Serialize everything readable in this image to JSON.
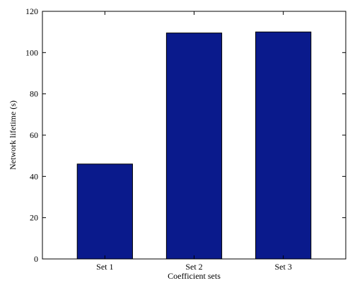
{
  "chart_data": {
    "type": "bar",
    "title": "",
    "xlabel": "Coefficient sets",
    "ylabel": "Network lifetime (s)",
    "categories": [
      "Set 1",
      "Set 2",
      "Set 3"
    ],
    "values": [
      46,
      109.5,
      110
    ],
    "ylim": [
      0,
      120
    ],
    "yticks": [
      0,
      20,
      40,
      60,
      80,
      100,
      120
    ],
    "grid": false,
    "bar_color": "#0a1a8c",
    "bar_edge_color": "#000000"
  }
}
